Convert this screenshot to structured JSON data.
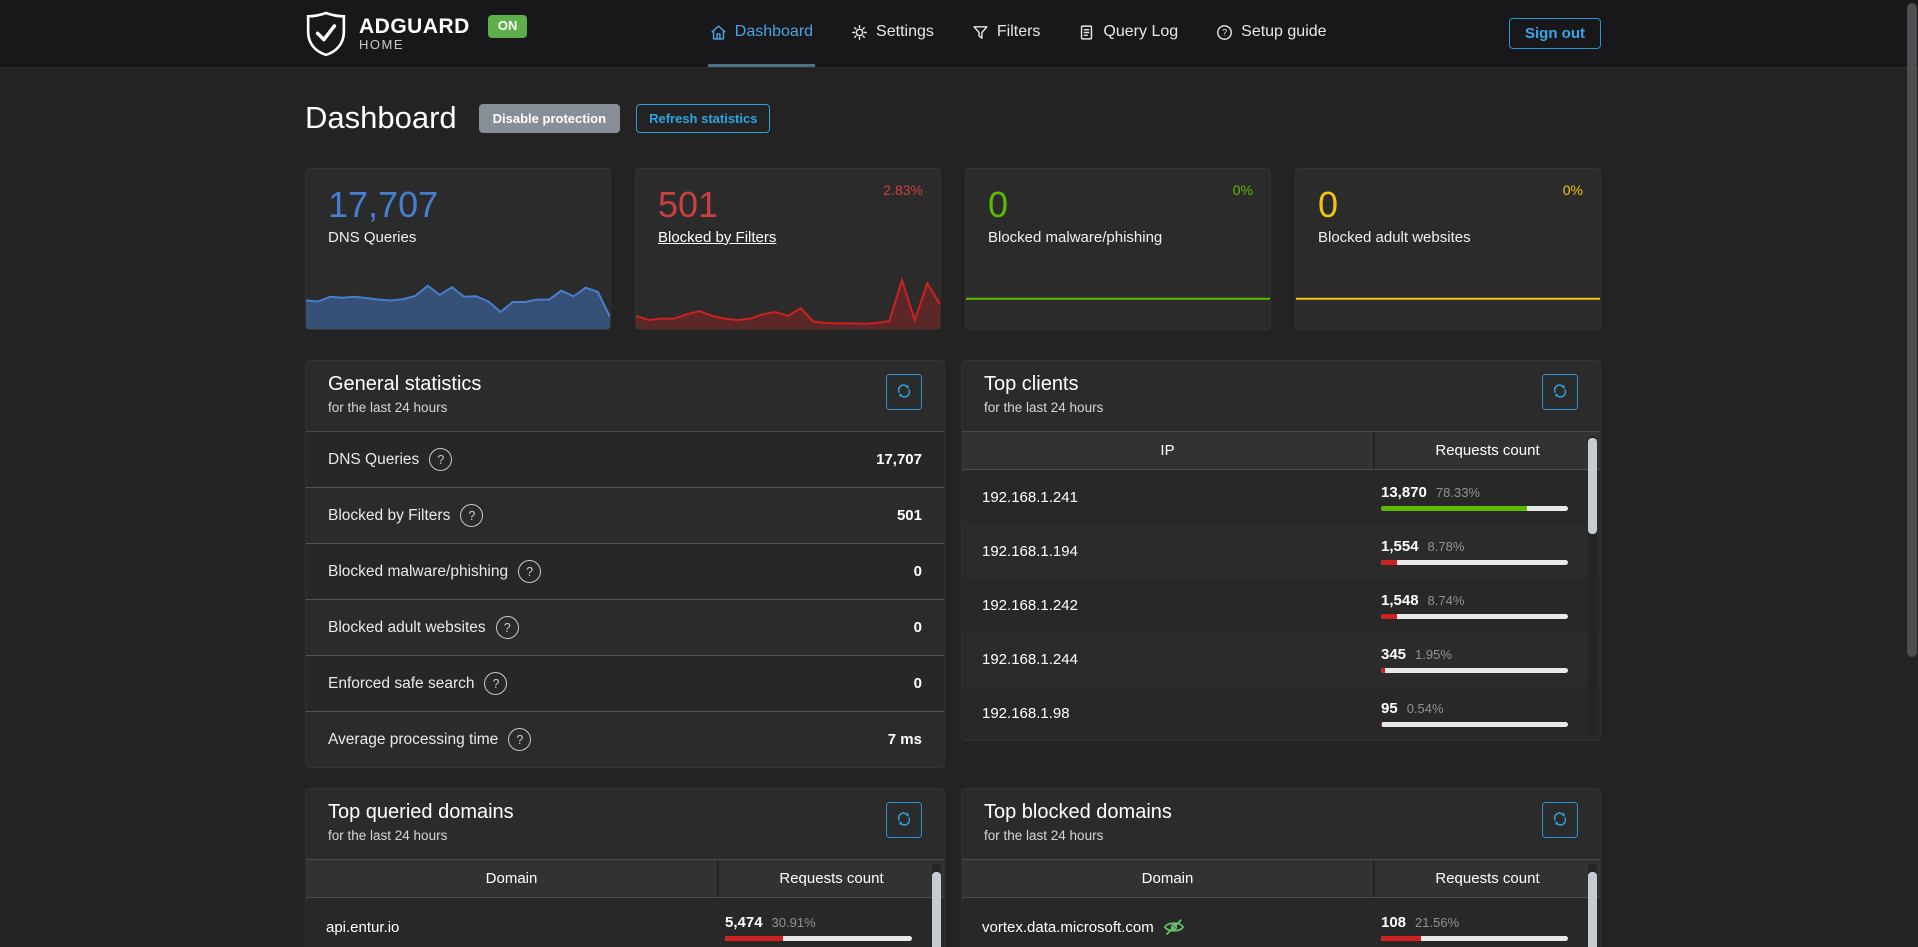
{
  "nav": {
    "brand": {
      "name": "ADGUARD",
      "sub": "HOME",
      "status_badge": "ON"
    },
    "items": [
      {
        "label": "Dashboard",
        "icon": "home-icon",
        "active": true
      },
      {
        "label": "Settings",
        "icon": "gear-icon",
        "active": false
      },
      {
        "label": "Filters",
        "icon": "funnel-icon",
        "active": false
      },
      {
        "label": "Query Log",
        "icon": "document-icon",
        "active": false
      },
      {
        "label": "Setup guide",
        "icon": "question-circle-icon",
        "active": false
      }
    ],
    "sign_out_label": "Sign out"
  },
  "header": {
    "title": "Dashboard",
    "disable_protection_label": "Disable protection",
    "refresh_statistics_label": "Refresh statistics"
  },
  "colors": {
    "accent_blue": "#2196d9",
    "number_blue": "#467fcf",
    "red": "#cd201f",
    "green": "#5eba00",
    "yellow": "#f1c40f",
    "badge_green": "#5eae4c"
  },
  "icons": {
    "help_glyph": "?"
  },
  "stat_cards": [
    {
      "value": "17,707",
      "label": "DNS Queries",
      "percent": ""
    },
    {
      "value": "501",
      "label": "Blocked by Filters",
      "percent": "2.83%"
    },
    {
      "value": "0",
      "label": "Blocked malware/phishing",
      "percent": "0%"
    },
    {
      "value": "0",
      "label": "Blocked adult websites",
      "percent": "0%"
    }
  ],
  "chart_data": [
    {
      "type": "area",
      "name": "dns-queries-sparkline",
      "color": "#467fcf",
      "fill": "rgba(70,127,207,0.45)",
      "values_normalized_0_100": true,
      "values": [
        52,
        50,
        60,
        58,
        60,
        57,
        54,
        52,
        55,
        62,
        83,
        64,
        80,
        60,
        61,
        50,
        28,
        49,
        49,
        54,
        54,
        73,
        61,
        79,
        70,
        18
      ]
    },
    {
      "type": "area",
      "name": "blocked-by-filters-sparkline",
      "color": "#cd201f",
      "fill": "rgba(205,32,31,0.3)",
      "values_normalized_0_100": true,
      "values": [
        20,
        11,
        14,
        14,
        23,
        30,
        20,
        14,
        11,
        14,
        23,
        28,
        20,
        36,
        8,
        5,
        4,
        4,
        3,
        5,
        9,
        95,
        11,
        88,
        44
      ]
    },
    {
      "type": "line",
      "name": "blocked-malware-sparkline",
      "color": "#5eba00",
      "fill": "none",
      "values": [
        0,
        0
      ]
    },
    {
      "type": "line",
      "name": "blocked-adult-sparkline",
      "color": "#f1c40f",
      "fill": "none",
      "values": [
        0,
        0
      ]
    }
  ],
  "general_statistics": {
    "title": "General statistics",
    "subtitle": "for the last 24 hours",
    "rows": [
      {
        "label": "DNS Queries",
        "value": "17,707"
      },
      {
        "label": "Blocked by Filters",
        "value": "501"
      },
      {
        "label": "Blocked malware/phishing",
        "value": "0"
      },
      {
        "label": "Blocked adult websites",
        "value": "0"
      },
      {
        "label": "Enforced safe search",
        "value": "0"
      },
      {
        "label": "Average processing time",
        "value": "7 ms"
      }
    ]
  },
  "top_clients": {
    "title": "Top clients",
    "subtitle": "for the last 24 hours",
    "columns": [
      "IP",
      "Requests count"
    ],
    "rows": [
      {
        "name": "192.168.1.241",
        "count": "13,870",
        "percent": "78.33%",
        "bar_percent": 78.33,
        "bar_color": "green"
      },
      {
        "name": "192.168.1.194",
        "count": "1,554",
        "percent": "8.78%",
        "bar_percent": 8.78,
        "bar_color": "red"
      },
      {
        "name": "192.168.1.242",
        "count": "1,548",
        "percent": "8.74%",
        "bar_percent": 8.74,
        "bar_color": "red"
      },
      {
        "name": "192.168.1.244",
        "count": "345",
        "percent": "1.95%",
        "bar_percent": 1.95,
        "bar_color": "red"
      },
      {
        "name": "192.168.1.98",
        "count": "95",
        "percent": "0.54%",
        "bar_percent": 0.54,
        "bar_color": "red"
      }
    ]
  },
  "top_queried_domains": {
    "title": "Top queried domains",
    "subtitle": "for the last 24 hours",
    "columns": [
      "Domain",
      "Requests count"
    ],
    "rows": [
      {
        "name": "api.entur.io",
        "count": "5,474",
        "percent": "30.91%",
        "bar_percent": 30.91,
        "bar_color": "red"
      }
    ]
  },
  "top_blocked_domains": {
    "title": "Top blocked domains",
    "subtitle": "for the last 24 hours",
    "columns": [
      "Domain",
      "Requests count"
    ],
    "rows": [
      {
        "name": "vortex.data.microsoft.com",
        "count": "108",
        "percent": "21.56%",
        "bar_percent": 21.56,
        "bar_color": "red"
      }
    ]
  }
}
